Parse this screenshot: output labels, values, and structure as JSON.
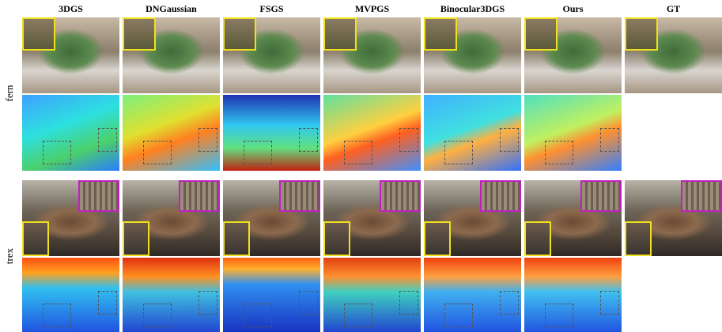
{
  "headers": [
    "3DGS",
    "DNGaussian",
    "FSGS",
    "MVPGS",
    "Binocular3DGS",
    "Ours",
    "GT"
  ],
  "rows": [
    {
      "label": "fern"
    },
    {
      "label": "trex"
    }
  ]
}
